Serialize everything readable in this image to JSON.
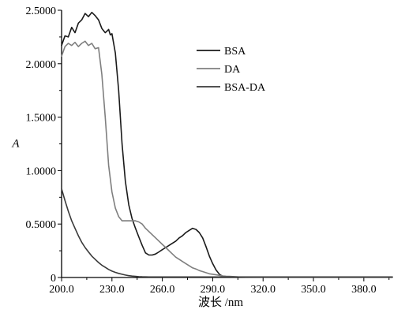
{
  "chart_data": {
    "type": "line",
    "title": "",
    "xlabel": "波长 /nm",
    "ylabel": "A",
    "xlim": [
      200,
      397
    ],
    "ylim": [
      0,
      2.5
    ],
    "x_ticks": [
      200,
      230,
      260,
      290,
      320,
      350,
      380
    ],
    "x_tick_labels": [
      "200.0",
      "230.0",
      "260.0",
      "290.0",
      "320.0",
      "350.0",
      "380.0"
    ],
    "y_ticks": [
      0,
      0.5,
      1.0,
      1.5,
      2.0,
      2.5
    ],
    "y_tick_labels": [
      "0",
      "0.5000",
      "1.0000",
      "1.5000",
      "2.0000",
      "2.5000"
    ],
    "grid": false,
    "legend_position": "top-right",
    "series": [
      {
        "name": "BSA",
        "color": "#1a1a1a",
        "x": [
          200,
          202,
          204,
          206,
          208,
          210,
          212,
          214,
          216,
          218,
          220,
          222,
          224,
          226,
          228,
          229,
          230,
          232,
          234,
          236,
          238,
          240,
          242,
          244,
          246,
          248,
          250,
          252,
          254,
          256,
          258,
          260,
          262,
          264,
          266,
          268,
          270,
          272,
          274,
          276,
          278,
          280,
          282,
          284,
          286,
          288,
          290,
          292,
          294,
          296,
          298,
          300,
          303,
          306,
          310,
          320,
          340,
          360,
          380,
          397
        ],
        "y": [
          2.17,
          2.26,
          2.25,
          2.34,
          2.29,
          2.38,
          2.41,
          2.47,
          2.44,
          2.48,
          2.45,
          2.41,
          2.33,
          2.29,
          2.32,
          2.27,
          2.28,
          2.1,
          1.75,
          1.25,
          0.9,
          0.68,
          0.55,
          0.46,
          0.38,
          0.3,
          0.23,
          0.21,
          0.21,
          0.22,
          0.24,
          0.26,
          0.28,
          0.3,
          0.32,
          0.34,
          0.37,
          0.39,
          0.42,
          0.44,
          0.46,
          0.45,
          0.42,
          0.37,
          0.29,
          0.2,
          0.13,
          0.07,
          0.03,
          0.01,
          0.005,
          0.005,
          0.003,
          0.003,
          0.003,
          0.003,
          0.003,
          0.003,
          0.003,
          0.003
        ]
      },
      {
        "name": "DA",
        "color": "#7f7f7f",
        "x": [
          200,
          202,
          204,
          206,
          208,
          210,
          212,
          214,
          216,
          218,
          220,
          222,
          224,
          226,
          228,
          230,
          232,
          234,
          236,
          238,
          240,
          242,
          244,
          246,
          248,
          250,
          252,
          254,
          256,
          258,
          260,
          262,
          264,
          266,
          268,
          270,
          272,
          274,
          276,
          278,
          280,
          282,
          284,
          286,
          288,
          290,
          292,
          294,
          296,
          298,
          300,
          305,
          310,
          320,
          340,
          360,
          380,
          397
        ],
        "y": [
          2.07,
          2.16,
          2.19,
          2.17,
          2.2,
          2.16,
          2.19,
          2.21,
          2.17,
          2.19,
          2.14,
          2.15,
          1.9,
          1.5,
          1.05,
          0.8,
          0.65,
          0.57,
          0.53,
          0.53,
          0.53,
          0.53,
          0.53,
          0.52,
          0.5,
          0.46,
          0.43,
          0.4,
          0.37,
          0.34,
          0.31,
          0.28,
          0.25,
          0.22,
          0.19,
          0.17,
          0.15,
          0.13,
          0.11,
          0.09,
          0.08,
          0.065,
          0.055,
          0.045,
          0.035,
          0.03,
          0.025,
          0.02,
          0.015,
          0.012,
          0.01,
          0.006,
          0.004,
          0.003,
          0.003,
          0.003,
          0.003,
          0.003
        ]
      },
      {
        "name": "BSA-DA",
        "color": "#3a3a3a",
        "x": [
          200,
          202,
          204,
          206,
          208,
          210,
          212,
          214,
          216,
          218,
          220,
          222,
          224,
          226,
          228,
          230,
          232,
          234,
          236,
          238,
          240,
          242,
          244,
          246,
          248,
          250,
          252,
          254,
          256,
          258,
          260,
          265,
          270,
          280,
          290,
          300,
          320,
          340,
          360,
          380,
          397
        ],
        "y": [
          0.83,
          0.72,
          0.62,
          0.53,
          0.46,
          0.39,
          0.33,
          0.28,
          0.24,
          0.2,
          0.17,
          0.14,
          0.115,
          0.095,
          0.075,
          0.06,
          0.048,
          0.038,
          0.03,
          0.023,
          0.017,
          0.013,
          0.01,
          0.008,
          0.007,
          0.006,
          0.005,
          0.005,
          0.005,
          0.005,
          0.005,
          0.005,
          0.005,
          0.005,
          0.005,
          0.005,
          0.005,
          0.005,
          0.005,
          0.005,
          0.005
        ]
      }
    ]
  }
}
